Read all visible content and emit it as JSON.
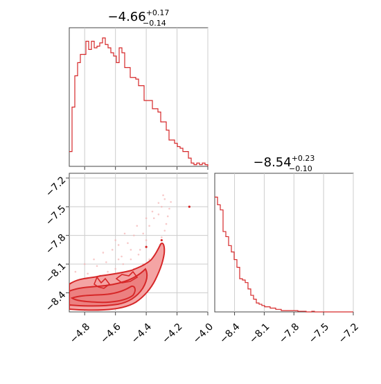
{
  "chart_data": [
    {
      "type": "histogram",
      "panel": "top-left",
      "title_main": "−4.66",
      "title_sup": "+0.17",
      "title_sub": "−0.14",
      "xlim": [
        -4.9,
        -4.0
      ],
      "x_ticks": [
        -4.8,
        -4.6,
        -4.4,
        -4.2,
        -4.0
      ],
      "y_ticks": [],
      "grid": true,
      "bin_edges_start": -4.9,
      "bin_width": 0.018,
      "counts": [
        0.09,
        0.36,
        0.55,
        0.63,
        0.68,
        0.68,
        0.76,
        0.71,
        0.76,
        0.72,
        0.73,
        0.75,
        0.78,
        0.74,
        0.72,
        0.69,
        0.67,
        0.63,
        0.72,
        0.69,
        0.6,
        0.6,
        0.54,
        0.54,
        0.53,
        0.49,
        0.49,
        0.4,
        0.4,
        0.4,
        0.35,
        0.35,
        0.33,
        0.27,
        0.27,
        0.22,
        0.16,
        0.16,
        0.14,
        0.12,
        0.11,
        0.09,
        0.09,
        0.05,
        0.02,
        0.01,
        0.02,
        0.01,
        0.02,
        0.01,
        0.0
      ],
      "color": "#d62728"
    },
    {
      "type": "histogram",
      "panel": "bottom-right",
      "title_main": "−8.54",
      "title_sup": "+0.23",
      "title_sub": "−0.10",
      "xlim": [
        -8.6,
        -7.2
      ],
      "x_ticks": [
        -8.4,
        -8.1,
        -7.8,
        -7.5,
        -7.2
      ],
      "x_tick_labels": [
        "−8.4",
        "−8.1",
        "−7.8",
        "−7.5",
        "−7.2"
      ],
      "y_ticks": [],
      "grid": true,
      "bin_edges_start": -8.6,
      "bin_width": 0.028,
      "counts": [
        0.9,
        0.84,
        0.8,
        0.63,
        0.59,
        0.52,
        0.47,
        0.41,
        0.35,
        0.26,
        0.25,
        0.23,
        0.18,
        0.13,
        0.1,
        0.07,
        0.06,
        0.05,
        0.04,
        0.04,
        0.03,
        0.03,
        0.02,
        0.02,
        0.01,
        0.01,
        0.01,
        0.01,
        0.01,
        0.01,
        0.005,
        0.005,
        0.005,
        0.0,
        0.0,
        0.005,
        0.0,
        0.0,
        0.0,
        0.0,
        0.0,
        0.0,
        0.0,
        0.0,
        0.0,
        0.0,
        0.0,
        0.0,
        0.0,
        0.0
      ],
      "color": "#d62728"
    },
    {
      "type": "scatter",
      "panel": "bottom-left",
      "xlim": [
        -4.9,
        -4.0
      ],
      "ylim": [
        -8.6,
        -7.15
      ],
      "x_ticks": [
        -4.8,
        -4.6,
        -4.4,
        -4.2,
        -4.0
      ],
      "x_tick_labels": [
        "−4.8",
        "−4.6",
        "−4.4",
        "−4.2",
        "−4.0"
      ],
      "y_ticks": [
        -7.2,
        -7.5,
        -7.8,
        -8.1,
        -8.4
      ],
      "y_tick_labels": [
        "−7.2",
        "−7.5",
        "−7.8",
        "−8.1",
        "−8.4"
      ],
      "grid": true,
      "color": "#d62728",
      "contour_fill": "#f4a4a4",
      "contour_fill_inner": "#ec8080",
      "outlier_points": [
        [
          -4.12,
          -7.5
        ],
        [
          -4.4,
          -7.92
        ],
        [
          -4.3,
          -7.85
        ]
      ],
      "scatter_points": [
        [
          -4.85,
          -8.52
        ],
        [
          -4.82,
          -8.48
        ],
        [
          -4.78,
          -8.5
        ],
        [
          -4.75,
          -8.45
        ],
        [
          -4.72,
          -8.4
        ],
        [
          -4.7,
          -8.47
        ],
        [
          -4.68,
          -8.35
        ],
        [
          -4.65,
          -8.42
        ],
        [
          -4.62,
          -8.3
        ],
        [
          -4.6,
          -8.38
        ],
        [
          -4.58,
          -8.25
        ],
        [
          -4.55,
          -8.33
        ],
        [
          -4.52,
          -8.2
        ],
        [
          -4.5,
          -8.28
        ],
        [
          -4.48,
          -8.15
        ],
        [
          -4.45,
          -8.22
        ],
        [
          -4.42,
          -8.1
        ],
        [
          -4.4,
          -8.18
        ],
        [
          -4.38,
          -8.05
        ],
        [
          -4.35,
          -8.12
        ],
        [
          -4.33,
          -7.98
        ],
        [
          -4.31,
          -7.9
        ],
        [
          -4.3,
          -7.82
        ],
        [
          -4.28,
          -7.75
        ],
        [
          -4.27,
          -7.68
        ],
        [
          -4.26,
          -7.6
        ],
        [
          -4.25,
          -7.52
        ],
        [
          -4.24,
          -7.45
        ],
        [
          -4.45,
          -8.0
        ],
        [
          -4.5,
          -8.05
        ],
        [
          -4.55,
          -8.1
        ],
        [
          -4.6,
          -8.15
        ],
        [
          -4.65,
          -8.18
        ],
        [
          -4.7,
          -8.22
        ],
        [
          -4.75,
          -8.3
        ],
        [
          -4.8,
          -8.35
        ],
        [
          -4.62,
          -7.95
        ],
        [
          -4.58,
          -7.9
        ],
        [
          -4.52,
          -7.88
        ],
        [
          -4.48,
          -7.8
        ],
        [
          -4.42,
          -7.78
        ],
        [
          -4.38,
          -7.7
        ],
        [
          -4.35,
          -7.62
        ],
        [
          -4.32,
          -7.58
        ],
        [
          -4.3,
          -7.5
        ],
        [
          -4.28,
          -7.42
        ],
        [
          -4.56,
          -8.02
        ],
        [
          -4.66,
          -8.08
        ],
        [
          -4.72,
          -8.12
        ],
        [
          -4.78,
          -8.2
        ],
        [
          -4.84,
          -8.28
        ],
        [
          -4.88,
          -8.4
        ],
        [
          -4.68,
          -7.98
        ],
        [
          -4.64,
          -8.28
        ],
        [
          -4.54,
          -8.4
        ],
        [
          -4.46,
          -8.35
        ],
        [
          -4.36,
          -8.2
        ],
        [
          -4.34,
          -8.05
        ],
        [
          -4.44,
          -7.95
        ],
        [
          -4.4,
          -7.85
        ],
        [
          -4.5,
          -7.95
        ],
        [
          -4.58,
          -8.05
        ],
        [
          -4.74,
          -8.05
        ],
        [
          -4.8,
          -8.1
        ],
        [
          -4.86,
          -8.18
        ],
        [
          -4.6,
          -7.85
        ],
        [
          -4.54,
          -7.78
        ],
        [
          -4.46,
          -7.7
        ],
        [
          -4.4,
          -7.62
        ],
        [
          -4.36,
          -7.55
        ],
        [
          -4.32,
          -7.46
        ],
        [
          -4.29,
          -7.38
        ]
      ]
    }
  ]
}
